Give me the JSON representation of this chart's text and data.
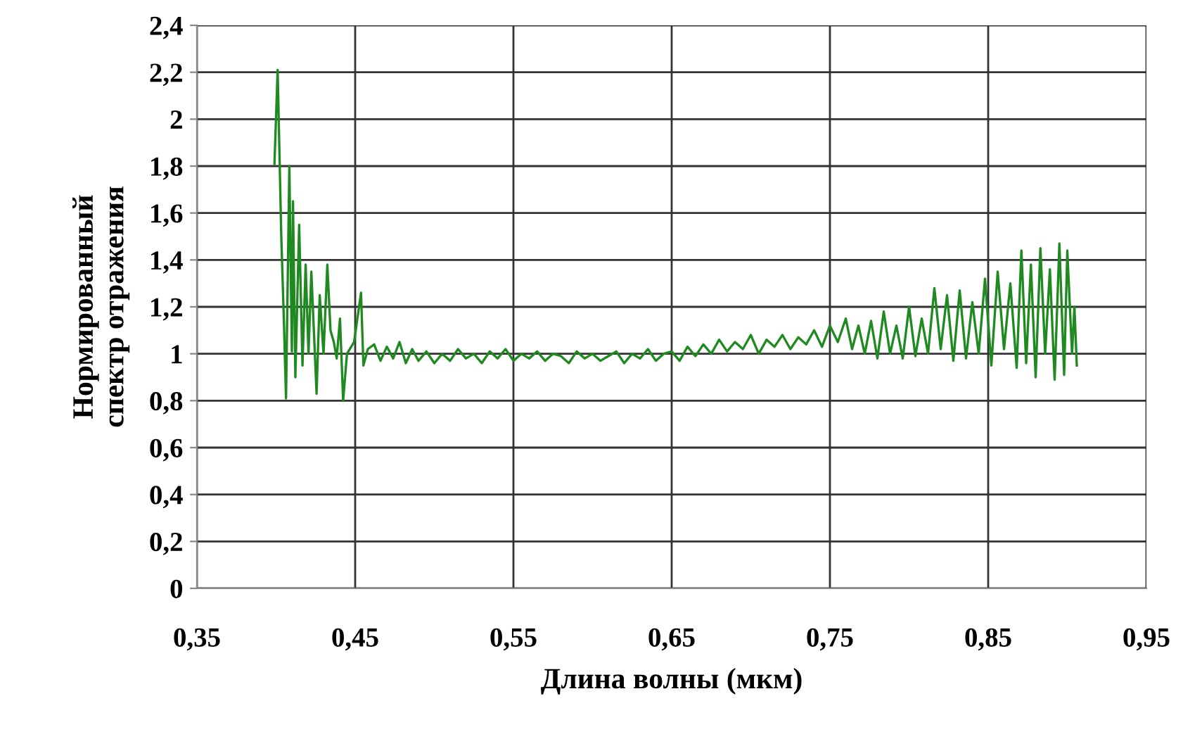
{
  "chart_data": {
    "type": "line",
    "xlabel": "Длина волны (мкм)",
    "ylabel": "Нормированный\nспектр отражения",
    "xlim": [
      0.35,
      0.95
    ],
    "xticks": [
      {
        "value": 0.35,
        "label": "0,35"
      },
      {
        "value": 0.45,
        "label": "0,45"
      },
      {
        "value": 0.55,
        "label": "0,55"
      },
      {
        "value": 0.65,
        "label": "0,65"
      },
      {
        "value": 0.75,
        "label": "0,75"
      },
      {
        "value": 0.85,
        "label": "0,85"
      },
      {
        "value": 0.95,
        "label": "0,95"
      }
    ],
    "ylim": [
      0,
      2.4
    ],
    "yticks": [
      0,
      {
        "value": 0.2,
        "label": "0,2"
      },
      {
        "value": 0.4,
        "label": "0,4"
      },
      {
        "value": 0.6,
        "label": "0,6"
      },
      {
        "value": 0.8,
        "label": "0,8"
      },
      1,
      {
        "value": 1.2,
        "label": "1,2"
      },
      {
        "value": 1.4,
        "label": "1,4"
      },
      {
        "value": 1.6,
        "label": "1,6"
      },
      {
        "value": 1.8,
        "label": "1,8"
      },
      2,
      {
        "value": 2.2,
        "label": "2,2"
      },
      {
        "value": 2.4,
        "label": "2,4"
      }
    ],
    "grid": true,
    "marker": "none",
    "line_style": "solid",
    "series": [
      {
        "color": "#1f8a1f",
        "x": [
          0.399,
          0.401,
          0.4033,
          0.405,
          0.4063,
          0.4084,
          0.41,
          0.4107,
          0.4122,
          0.4146,
          0.4167,
          0.4187,
          0.4205,
          0.4223,
          0.4256,
          0.4276,
          0.43,
          0.4324,
          0.4344,
          0.4365,
          0.4383,
          0.4404,
          0.4424,
          0.4448,
          0.4493,
          0.4537,
          0.4552,
          0.458,
          0.462,
          0.466,
          0.47,
          0.474,
          0.478,
          0.482,
          0.486,
          0.49,
          0.495,
          0.5,
          0.505,
          0.51,
          0.515,
          0.52,
          0.525,
          0.53,
          0.535,
          0.54,
          0.545,
          0.55,
          0.555,
          0.56,
          0.565,
          0.57,
          0.575,
          0.58,
          0.585,
          0.59,
          0.595,
          0.6,
          0.605,
          0.61,
          0.615,
          0.62,
          0.625,
          0.63,
          0.635,
          0.64,
          0.645,
          0.65,
          0.655,
          0.66,
          0.665,
          0.67,
          0.675,
          0.68,
          0.685,
          0.69,
          0.695,
          0.7,
          0.705,
          0.71,
          0.715,
          0.72,
          0.725,
          0.73,
          0.735,
          0.74,
          0.745,
          0.75,
          0.755,
          0.76,
          0.764,
          0.768,
          0.772,
          0.776,
          0.78,
          0.784,
          0.788,
          0.792,
          0.796,
          0.8,
          0.804,
          0.808,
          0.812,
          0.816,
          0.82,
          0.824,
          0.828,
          0.832,
          0.836,
          0.84,
          0.844,
          0.848,
          0.852,
          0.856,
          0.86,
          0.864,
          0.868,
          0.871,
          0.874,
          0.877,
          0.88,
          0.883,
          0.886,
          0.889,
          0.892,
          0.895,
          0.898,
          0.9,
          0.903,
          0.9045,
          0.906
        ],
        "values": [
          1.81,
          2.21,
          1.5,
          1.13,
          0.81,
          1.8,
          1.01,
          1.65,
          0.9,
          1.55,
          0.95,
          1.38,
          1.0,
          1.35,
          0.83,
          1.25,
          1.0,
          1.38,
          1.1,
          1.05,
          0.98,
          1.15,
          0.8,
          1.0,
          1.05,
          1.26,
          0.95,
          1.02,
          1.04,
          0.97,
          1.03,
          0.98,
          1.05,
          0.96,
          1.02,
          0.97,
          1.01,
          0.96,
          1.0,
          0.97,
          1.02,
          0.98,
          1.0,
          0.96,
          1.01,
          0.98,
          1.02,
          0.97,
          1.0,
          0.98,
          1.01,
          0.97,
          1.0,
          0.99,
          0.96,
          1.01,
          0.98,
          1.0,
          0.97,
          0.99,
          1.01,
          0.96,
          1.0,
          0.98,
          1.02,
          0.97,
          1.0,
          1.01,
          0.97,
          1.03,
          0.99,
          1.04,
          1.0,
          1.06,
          1.01,
          1.05,
          1.02,
          1.08,
          1.0,
          1.06,
          1.03,
          1.08,
          1.02,
          1.07,
          1.04,
          1.1,
          1.03,
          1.12,
          1.05,
          1.15,
          1.02,
          1.12,
          1.0,
          1.14,
          0.98,
          1.18,
          1.0,
          1.12,
          0.98,
          1.2,
          0.99,
          1.15,
          1.0,
          1.28,
          1.02,
          1.25,
          0.97,
          1.27,
          0.98,
          1.22,
          1.0,
          1.32,
          0.95,
          1.35,
          1.02,
          1.3,
          0.94,
          1.44,
          0.96,
          1.38,
          0.9,
          1.45,
          1.0,
          1.36,
          0.89,
          1.47,
          0.91,
          1.44,
          1.0,
          1.2,
          0.95
        ]
      }
    ]
  }
}
